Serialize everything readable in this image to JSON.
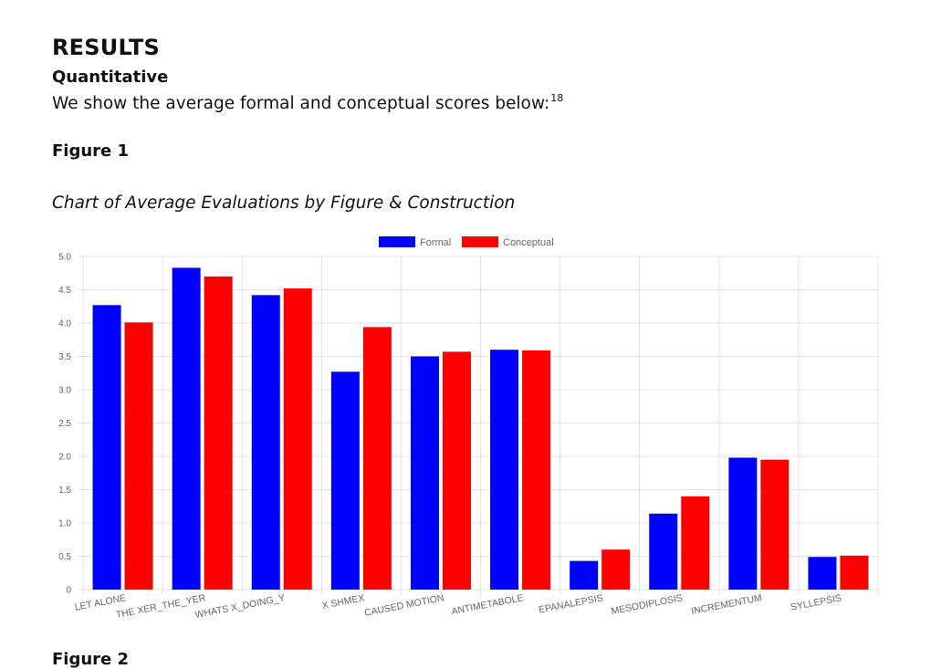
{
  "section": {
    "heading": "RESULTS",
    "subheading": "Quantitative",
    "paragraph": "We show the average formal and conceptual scores below:",
    "footnote_ref": "18"
  },
  "figure": {
    "label": "Figure 1",
    "title": "Chart of Average Evaluations by Figure & Construction"
  },
  "next_figure_label": "Figure 2",
  "chart_data": {
    "type": "bar",
    "categories": [
      "LET ALONE",
      "THE XER_THE_YER",
      "WHATS X_DOING_Y",
      "X SHMEX",
      "CAUSED MOTION",
      "ANTIMETABOLE",
      "EPANALEPSIS",
      "MESODIPLOSIS",
      "INCREMENTUM",
      "SYLLEPSIS"
    ],
    "series": [
      {
        "name": "Formal",
        "color": "#0000ff",
        "values": [
          4.27,
          4.83,
          4.42,
          3.27,
          3.5,
          3.6,
          0.43,
          1.14,
          1.98,
          0.49
        ]
      },
      {
        "name": "Conceptual",
        "color": "#ff0000",
        "values": [
          4.01,
          4.7,
          4.52,
          3.94,
          3.57,
          3.59,
          0.6,
          1.4,
          1.95,
          0.51
        ]
      }
    ],
    "yticks": [
      "0",
      "0.5",
      "1.0",
      "1.5",
      "2.0",
      "2.5",
      "3.0",
      "3.5",
      "4.0",
      "4.5",
      "5.0"
    ],
    "ylim": [
      0,
      5
    ],
    "legend_position": "top-center",
    "grid": true,
    "x_tick_rotation": "diagonal"
  }
}
